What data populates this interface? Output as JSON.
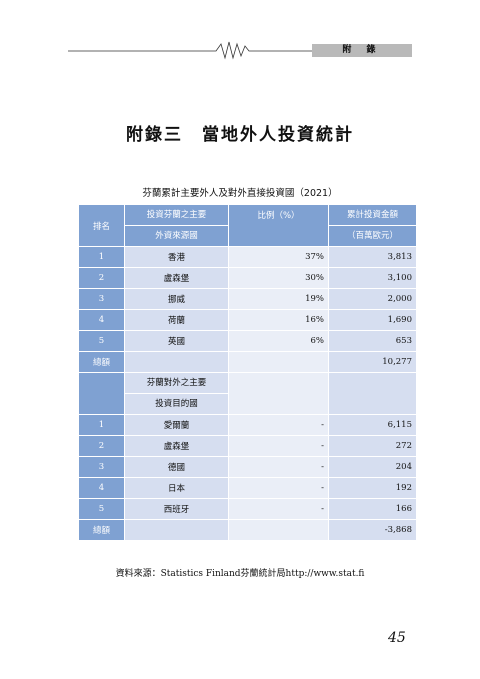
{
  "header": {
    "tab_label": "附 錄"
  },
  "title": "附錄三　當地外人投資統計",
  "caption": "芬蘭累計主要外人及對外直接投資國（2021）",
  "table": {
    "col_rank": "排名",
    "col_country_line1": "投資芬蘭之主要",
    "col_country_line2": "外資來源國",
    "col_pct": "比例（%）",
    "col_value_line1": "累計投資金額",
    "col_value_line2": "（百萬歐元）",
    "inbound_rows": [
      {
        "rank": "1",
        "country": "香港",
        "pct": "37%",
        "value": "3,813"
      },
      {
        "rank": "2",
        "country": "盧森堡",
        "pct": "30%",
        "value": "3,100"
      },
      {
        "rank": "3",
        "country": "挪威",
        "pct": "19%",
        "value": "2,000"
      },
      {
        "rank": "4",
        "country": "荷蘭",
        "pct": "16%",
        "value": "1,690"
      },
      {
        "rank": "5",
        "country": "英國",
        "pct": "6%",
        "value": "653"
      }
    ],
    "inbound_total_label": "總額",
    "inbound_total_value": "10,277",
    "outbound_header_line1": "芬蘭對外之主要",
    "outbound_header_line2": "投資目的國",
    "outbound_rows": [
      {
        "rank": "1",
        "country": "愛爾蘭",
        "pct": "-",
        "value": "6,115"
      },
      {
        "rank": "2",
        "country": "盧森堡",
        "pct": "-",
        "value": "272"
      },
      {
        "rank": "3",
        "country": "德國",
        "pct": "-",
        "value": "204"
      },
      {
        "rank": "4",
        "country": "日本",
        "pct": "-",
        "value": "192"
      },
      {
        "rank": "5",
        "country": "西班牙",
        "pct": "-",
        "value": "166"
      }
    ],
    "outbound_total_label": "總額",
    "outbound_total_value": "-3,868"
  },
  "source": "資料來源：Statistics Finland芬蘭統計局http://www.stat.fi",
  "page_number": "45"
}
